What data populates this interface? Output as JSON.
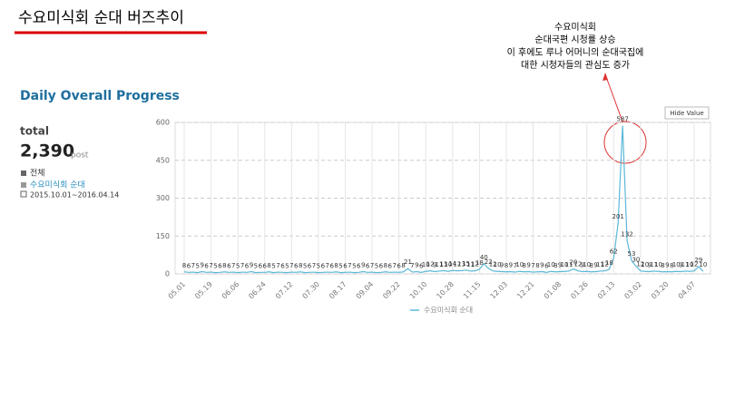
{
  "page_title": "수요미식회 순대 버즈추이",
  "annotation": [
    "수요미식회",
    "순대국편 시청률 상승",
    "이 후에도 루나 어머니의 순대국집에",
    "대한  시청자들의 관심도 증가"
  ],
  "panel": {
    "heading": "Daily Overall Progress",
    "total_label": "total",
    "total_value": "2,390",
    "total_unit": "post",
    "scope": "전체",
    "keyword": "수요미식회 순대",
    "period": "2015.10.01~2016.04.14",
    "button": "Hide Value"
  },
  "chart_data": {
    "type": "line",
    "ylim": [
      0,
      600
    ],
    "yticks": [
      0,
      150,
      300,
      450,
      600
    ],
    "grid": true,
    "categories": [
      "05.01",
      null,
      null,
      null,
      null,
      null,
      "05.19",
      null,
      null,
      null,
      null,
      null,
      "06.06",
      null,
      null,
      null,
      null,
      null,
      "06.24",
      null,
      null,
      null,
      null,
      null,
      "07.12",
      null,
      null,
      null,
      null,
      null,
      "07.30",
      null,
      null,
      null,
      null,
      null,
      "08.17",
      null,
      null,
      null,
      null,
      null,
      "09.04",
      null,
      null,
      null,
      null,
      null,
      "09.22",
      null,
      null,
      null,
      null,
      null,
      "10.10",
      null,
      null,
      null,
      null,
      null,
      "10.28",
      null,
      null,
      null,
      null,
      null,
      "11.15",
      null,
      null,
      null,
      null,
      null,
      "12.03",
      null,
      null,
      null,
      null,
      null,
      "12.21",
      null,
      null,
      null,
      null,
      null,
      "01.08",
      null,
      null,
      null,
      null,
      null,
      "01.26",
      null,
      null,
      null,
      null,
      null,
      "02.13",
      null,
      null,
      null,
      null,
      null,
      "03.02",
      null,
      null,
      null,
      null,
      null,
      "03.20",
      null,
      null,
      null,
      null,
      null,
      "04.07",
      null,
      null
    ],
    "series": [
      {
        "name": "수요미식회 순대",
        "color": "#5bb8d8",
        "values": [
          8,
          6,
          7,
          5,
          9,
          6,
          7,
          5,
          6,
          8,
          6,
          7,
          5,
          7,
          6,
          9,
          5,
          6,
          6,
          8,
          5,
          7,
          6,
          5,
          7,
          6,
          8,
          5,
          6,
          7,
          5,
          6,
          7,
          6,
          8,
          5,
          6,
          7,
          5,
          6,
          9,
          6,
          7,
          5,
          6,
          8,
          6,
          7,
          6,
          8,
          21,
          7,
          9,
          6,
          10,
          12,
          9,
          11,
          13,
          10,
          14,
          12,
          13,
          15,
          11,
          12,
          18,
          40,
          22,
          12,
          10,
          9,
          8,
          9,
          7,
          10,
          8,
          9,
          7,
          8,
          9,
          6,
          10,
          8,
          9,
          10,
          11,
          20,
          12,
          9,
          10,
          8,
          9,
          11,
          12,
          18,
          62,
          201,
          587,
          132,
          53,
          30,
          12,
          10,
          9,
          11,
          10,
          8,
          9,
          8,
          10,
          9,
          11,
          10,
          12,
          29,
          10
        ]
      }
    ]
  }
}
